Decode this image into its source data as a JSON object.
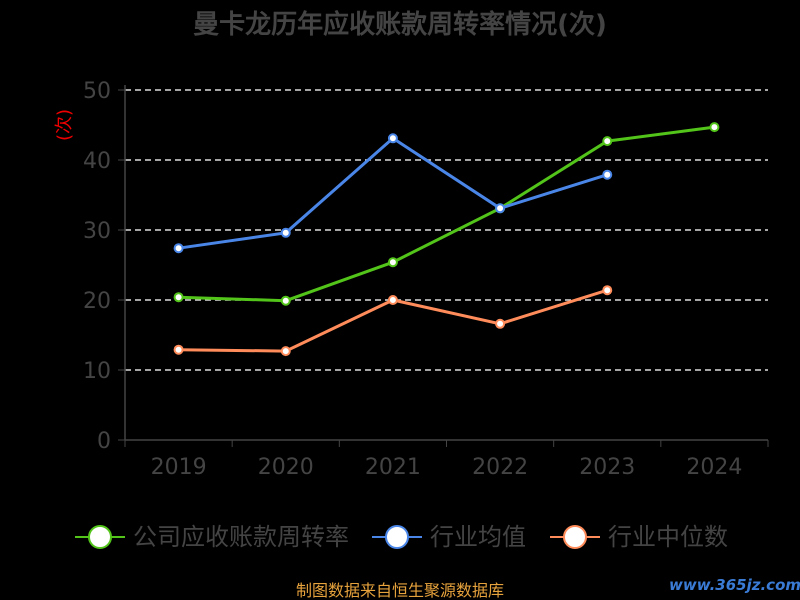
{
  "chart_data": {
    "type": "line",
    "title": "曼卡龙历年应收账款周转率情况(次)",
    "ylabel": "(次)",
    "xlabel": "",
    "categories": [
      "2019",
      "2020",
      "2021",
      "2022",
      "2023",
      "2024"
    ],
    "ylim": [
      0,
      50
    ],
    "yticks": [
      "0",
      "10",
      "20",
      "30",
      "40",
      "50"
    ],
    "grid": true,
    "legend_position": "bottom",
    "series": [
      {
        "name": "公司应收账款周转率",
        "color": "#52c41a",
        "values": [
          20.4,
          19.9,
          25.4,
          33.1,
          42.7,
          44.7
        ]
      },
      {
        "name": "行业均值",
        "color": "#4a86e8",
        "values": [
          27.4,
          29.6,
          43.1,
          33.1,
          37.9,
          null
        ]
      },
      {
        "name": "行业中位数",
        "color": "#ff8c5a",
        "values": [
          12.9,
          12.7,
          20.0,
          16.6,
          21.4,
          null
        ]
      }
    ]
  },
  "footer": {
    "source": "制图数据来自恒生聚源数据库",
    "watermark": "www.365jz.com"
  }
}
